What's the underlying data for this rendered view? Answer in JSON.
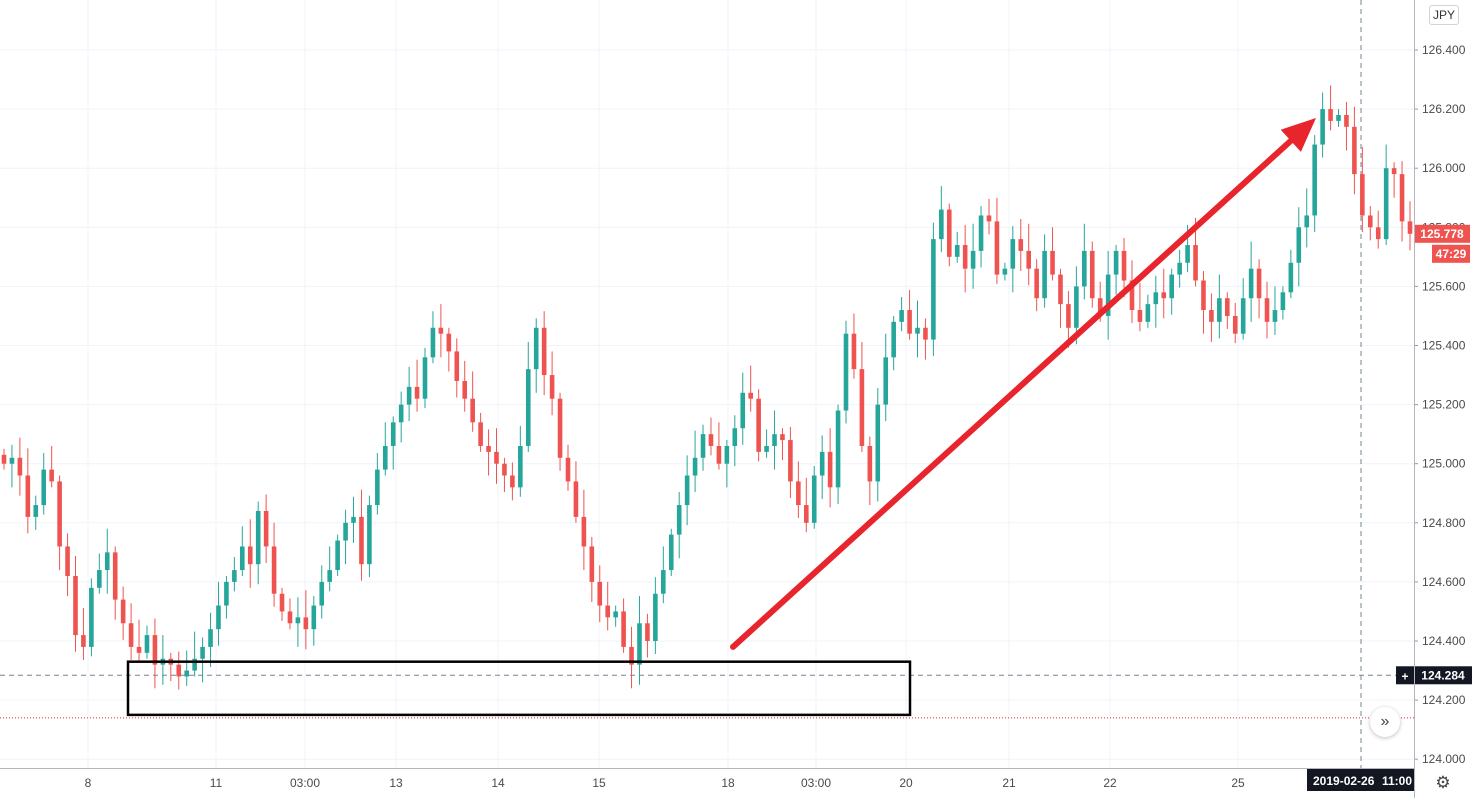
{
  "app": {
    "currency": "JPY",
    "settings_icon": "gear-icon",
    "scroll_icon": "double-chevron-right-icon"
  },
  "chart_data": {
    "type": "candlestick",
    "y_ticks": [
      "126.400",
      "126.200",
      "126.000",
      "125.800",
      "125.600",
      "125.400",
      "125.200",
      "125.000",
      "124.800",
      "124.600",
      "124.400",
      "124.200",
      "124.000"
    ],
    "y_tick_values": [
      126.4,
      126.2,
      126.0,
      125.8,
      125.6,
      125.4,
      125.2,
      125.0,
      124.8,
      124.6,
      124.4,
      124.2,
      124.0
    ],
    "ylim": [
      123.96,
      126.5
    ],
    "x_ticks": [
      "8",
      "11",
      "03:00",
      "13",
      "14",
      "15",
      "18",
      "03:00",
      "20",
      "21",
      "22",
      "25"
    ],
    "last_price": {
      "value": "125.778",
      "countdown": "47:29",
      "color": "#ef5350"
    },
    "crosshair": {
      "price": "124.284",
      "date": "2019-02-26",
      "time": "11:00"
    },
    "support_level": 124.14,
    "colors": {
      "up": "#26a69a",
      "down": "#ef5350",
      "arrow": "#e8242c"
    },
    "annotations": [
      {
        "type": "rectangle",
        "label": "support-zone",
        "price_top": 124.33,
        "price_bottom": 124.15
      },
      {
        "type": "arrow",
        "label": "uptrend-arrow",
        "price_from": 124.38,
        "price_to": 126.17
      }
    ],
    "closes": [
      125.0,
      125.02,
      124.96,
      124.82,
      124.86,
      124.98,
      124.94,
      124.72,
      124.62,
      124.42,
      124.38,
      124.58,
      124.64,
      124.7,
      124.54,
      124.46,
      124.38,
      124.36,
      124.42,
      124.32,
      124.34,
      124.32,
      124.28,
      124.3,
      124.34,
      124.38,
      124.44,
      124.52,
      124.6,
      124.64,
      124.72,
      124.66,
      124.84,
      124.72,
      124.56,
      124.5,
      124.46,
      124.48,
      124.44,
      124.52,
      124.6,
      124.64,
      124.74,
      124.8,
      124.82,
      124.66,
      124.86,
      124.98,
      125.06,
      125.14,
      125.2,
      125.26,
      125.22,
      125.36,
      125.46,
      125.44,
      125.38,
      125.28,
      125.22,
      125.14,
      125.06,
      125.04,
      125.0,
      124.96,
      124.92,
      125.06,
      125.32,
      125.46,
      125.3,
      125.22,
      125.02,
      124.94,
      124.82,
      124.72,
      124.6,
      124.52,
      124.48,
      124.5,
      124.38,
      124.32,
      124.46,
      124.4,
      124.56,
      124.64,
      124.76,
      124.86,
      124.96,
      125.02,
      125.1,
      125.06,
      125.0,
      125.06,
      125.12,
      125.24,
      125.22,
      125.04,
      125.06,
      125.1,
      125.08,
      124.94,
      124.86,
      124.8,
      124.96,
      125.04,
      124.92,
      125.18,
      125.44,
      125.32,
      125.06,
      124.94,
      125.2,
      125.36,
      125.48,
      125.52,
      125.44,
      125.46,
      125.42,
      125.76,
      125.86,
      125.7,
      125.74,
      125.66,
      125.72,
      125.84,
      125.82,
      125.64,
      125.66,
      125.76,
      125.72,
      125.66,
      125.56,
      125.72,
      125.64,
      125.54,
      125.46,
      125.6,
      125.72,
      125.56,
      125.5,
      125.64,
      125.72,
      125.62,
      125.52,
      125.48,
      125.54,
      125.58,
      125.56,
      125.64,
      125.68,
      125.74,
      125.62,
      125.52,
      125.48,
      125.56,
      125.5,
      125.44,
      125.56,
      125.66,
      125.56,
      125.48,
      125.52,
      125.58,
      125.68,
      125.8,
      125.84,
      126.08,
      126.2,
      126.16,
      126.18,
      126.14,
      125.98,
      125.84,
      125.8,
      125.76,
      126.0,
      125.98,
      125.82,
      125.778
    ]
  }
}
